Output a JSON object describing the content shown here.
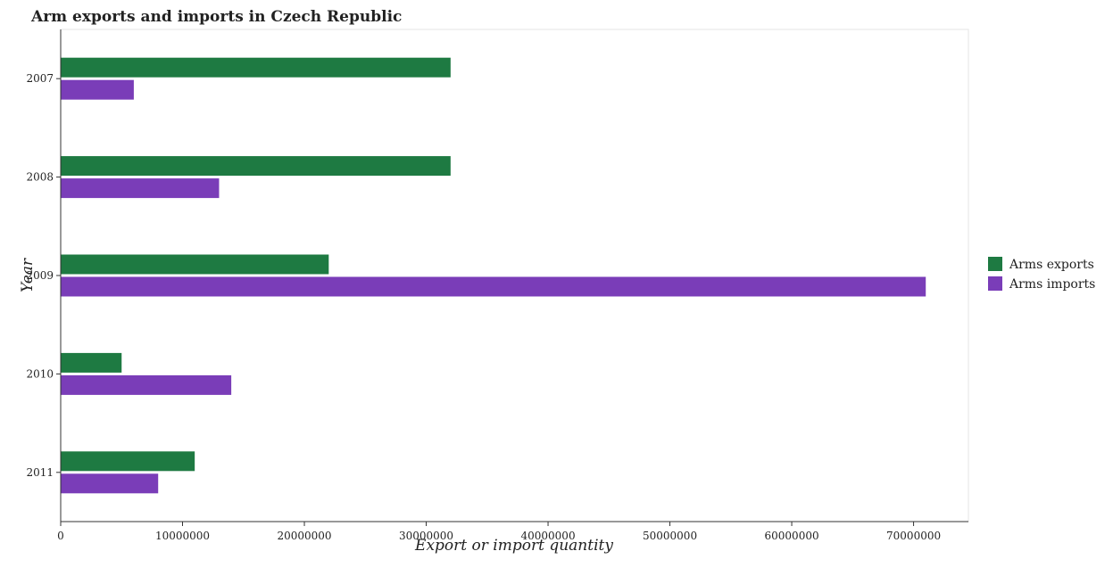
{
  "chart_data": {
    "type": "bar",
    "orientation": "horizontal",
    "title": "Arm exports and imports in Czech Republic",
    "xlabel": "Export or import quantity",
    "ylabel": "Year",
    "categories": [
      "2007",
      "2008",
      "2009",
      "2010",
      "2011"
    ],
    "series": [
      {
        "name": "Arms exports",
        "color": "#1e7a42",
        "values": [
          32000000,
          32000000,
          22000000,
          5000000,
          11000000
        ]
      },
      {
        "name": "Arms imports",
        "color": "#7a3db8",
        "values": [
          6000000,
          13000000,
          71000000,
          14000000,
          8000000
        ]
      }
    ],
    "xlim": [
      0,
      74500000
    ],
    "xticks": [
      0,
      10000000,
      20000000,
      30000000,
      40000000,
      50000000,
      60000000,
      70000000
    ],
    "xtick_labels": [
      "0",
      "10000000",
      "20000000",
      "30000000",
      "40000000",
      "50000000",
      "60000000",
      "70000000"
    ],
    "grid": false,
    "legend_position": "right"
  }
}
